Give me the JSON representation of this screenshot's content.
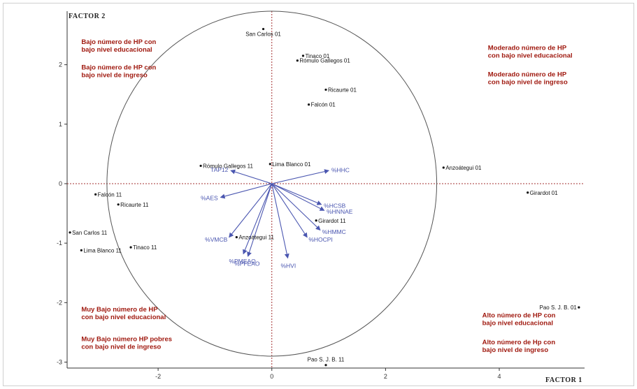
{
  "colors": {
    "observation": "#111111",
    "variable": "#4a56b0",
    "annotation": "#a01a10",
    "axis_line": "#333333",
    "zero_line": "#a33030"
  },
  "chart_data": {
    "type": "scatter",
    "title": "",
    "xlabel": "FACTOR 1",
    "ylabel": "FACTOR 2",
    "xlim": [
      -3.6,
      5.5
    ],
    "ylim": [
      -3.1,
      2.9
    ],
    "xticks": [
      -2,
      0,
      2,
      4
    ],
    "yticks": [
      2,
      1,
      0,
      -1,
      -2,
      -3
    ],
    "grid": false,
    "correlation_circle": {
      "center": [
        0,
        0
      ],
      "radius": 2.9
    },
    "observations": [
      {
        "label": "San Carlos 01",
        "x": -0.15,
        "y": 2.6
      },
      {
        "label": "Tinaco 01",
        "x": 0.55,
        "y": 2.15
      },
      {
        "label": "Rómulo Gallegos 01",
        "x": 0.45,
        "y": 2.07
      },
      {
        "label": "Ricaurte 01",
        "x": 0.95,
        "y": 1.58
      },
      {
        "label": "Falcón 01",
        "x": 0.65,
        "y": 1.33
      },
      {
        "label": "Lima Blanco 01",
        "x": -0.03,
        "y": 0.33
      },
      {
        "label": "Anzoátegui 01",
        "x": 3.02,
        "y": 0.27
      },
      {
        "label": "Rómulo Gallegos 11",
        "x": -1.25,
        "y": 0.3
      },
      {
        "label": "Girardot 01",
        "x": 4.5,
        "y": -0.15
      },
      {
        "label": "Falcón 11",
        "x": -3.1,
        "y": -0.18
      },
      {
        "label": "Ricaurte 11",
        "x": -2.7,
        "y": -0.35
      },
      {
        "label": "Girardot 11",
        "x": 0.78,
        "y": -0.62
      },
      {
        "label": "Anzoátegui 11",
        "x": -0.62,
        "y": -0.9
      },
      {
        "label": "San Carlos 11",
        "x": -3.55,
        "y": -0.82
      },
      {
        "label": "Lima Blanco 11",
        "x": -3.35,
        "y": -1.12
      },
      {
        "label": "Tinaco 11",
        "x": -2.48,
        "y": -1.07
      },
      {
        "label": "Pao S. J. B. 01",
        "x": 5.4,
        "y": -2.08
      },
      {
        "label": "Pao S. J. B. 11",
        "x": 0.95,
        "y": -3.05
      }
    ],
    "variables": [
      {
        "label": "TAP12",
        "x": -0.72,
        "y": 0.22
      },
      {
        "label": "%HHC",
        "x": 1.0,
        "y": 0.22
      },
      {
        "label": "%AES",
        "x": -0.9,
        "y": -0.23
      },
      {
        "label": "%HCSB",
        "x": 0.87,
        "y": -0.35
      },
      {
        "label": "%HNNAE",
        "x": 0.92,
        "y": -0.45
      },
      {
        "label": "%HMMC",
        "x": 0.85,
        "y": -0.78
      },
      {
        "label": "%HOCPI",
        "x": 0.62,
        "y": -0.9
      },
      {
        "label": "%VMCB",
        "x": -0.75,
        "y": -0.9
      },
      {
        "label": "%PMEAO",
        "x": -0.5,
        "y": -1.18
      },
      {
        "label": "%PFEAO",
        "x": -0.42,
        "y": -1.22
      },
      {
        "label": "%HVI",
        "x": 0.28,
        "y": -1.25
      }
    ],
    "annotations": [
      {
        "lines": [
          "Bajo número de HP con",
          "bajo nivel educacional"
        ],
        "x": -3.35,
        "y": 2.35
      },
      {
        "lines": [
          "Bajo número de  HP con",
          "bajo nivel de ingreso"
        ],
        "x": -3.35,
        "y": 1.92
      },
      {
        "lines": [
          "Moderado número de HP",
          "con bajo nivel educacional"
        ],
        "x": 3.8,
        "y": 2.25
      },
      {
        "lines": [
          "Moderado número de HP",
          "con bajo nivel de ingreso"
        ],
        "x": 3.8,
        "y": 1.8
      },
      {
        "lines": [
          "Muy Bajo número de HP",
          "con bajo nivel educacional"
        ],
        "x": -3.35,
        "y": -2.15
      },
      {
        "lines": [
          "Muy Bajo número HP pobres",
          "con bajo nivel de ingreso"
        ],
        "x": -3.35,
        "y": -2.65
      },
      {
        "lines": [
          "Alto número de HP con",
          "bajo nivel educacional"
        ],
        "x": 3.7,
        "y": -2.25
      },
      {
        "lines": [
          "Alto número de Hp con",
          "bajo nivel de ingreso"
        ],
        "x": 3.7,
        "y": -2.7
      }
    ]
  }
}
